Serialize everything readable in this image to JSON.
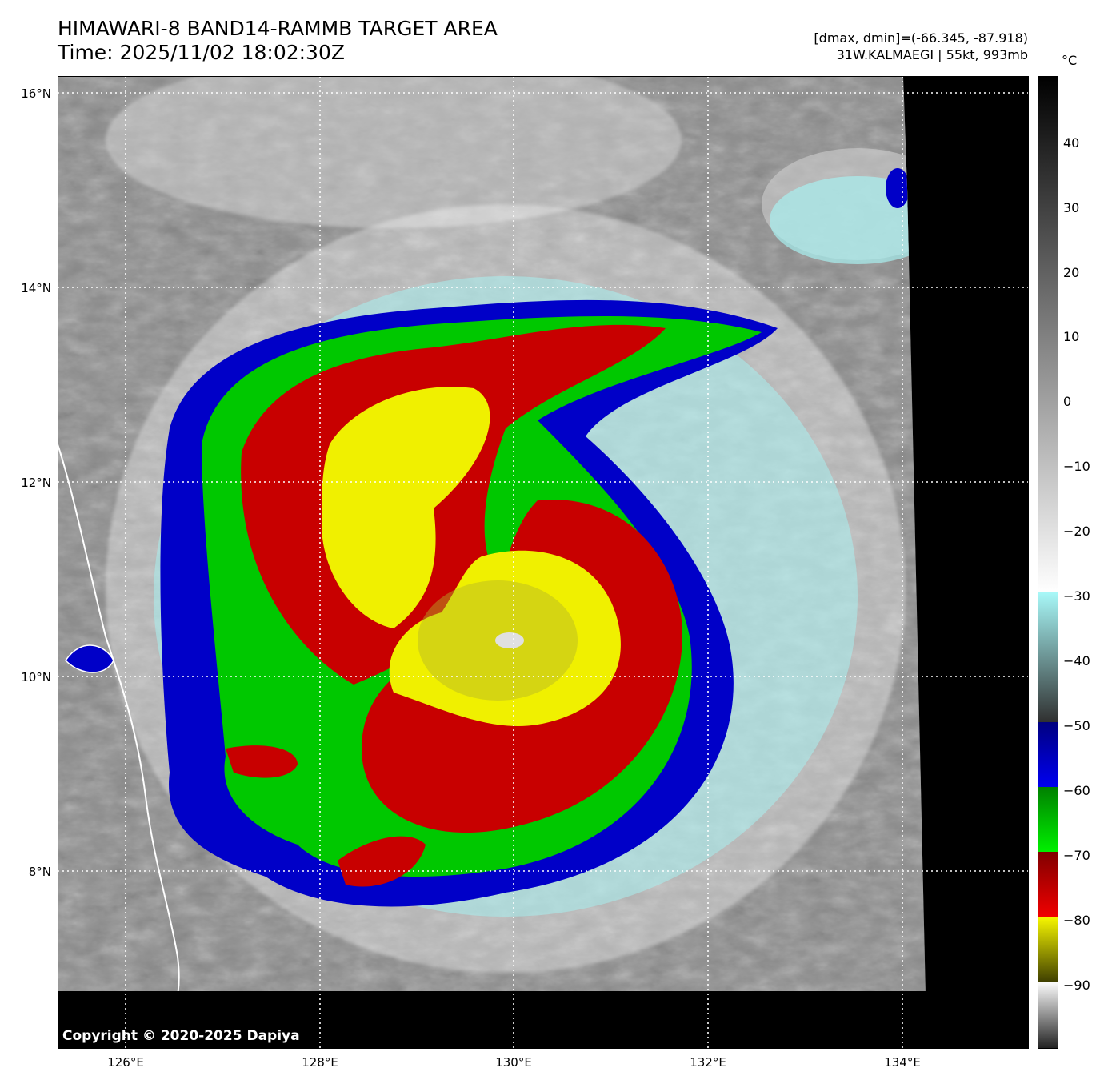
{
  "header": {
    "title_line1": "HIMAWARI-8 BAND14-RAMMB TARGET AREA",
    "title_line2": "Time: 2025/11/02 18:02:30Z",
    "dminmax": "[dmax, dmin]=(-66.345, -87.918)",
    "storm": "31W.KALMAEGI | 55kt, 993mb"
  },
  "colorbar": {
    "unit": "°C",
    "ticks": [
      "40",
      "30",
      "20",
      "10",
      "0",
      "−10",
      "−20",
      "−30",
      "−40",
      "−50",
      "−60",
      "−70",
      "−80",
      "−90"
    ]
  },
  "axes": {
    "lat_labels": [
      "16°N",
      "14°N",
      "12°N",
      "10°N",
      "8°N"
    ],
    "lon_labels": [
      "126°E",
      "128°E",
      "130°E",
      "132°E",
      "134°E"
    ]
  },
  "copyright": "Copyright © 2020-2025 Dapiya",
  "colors": {
    "blue": "#0000c8",
    "green": "#00c800",
    "red": "#c80000",
    "yellow": "#f0f000",
    "cyan": "#a8f0f0",
    "background": "#000000"
  }
}
